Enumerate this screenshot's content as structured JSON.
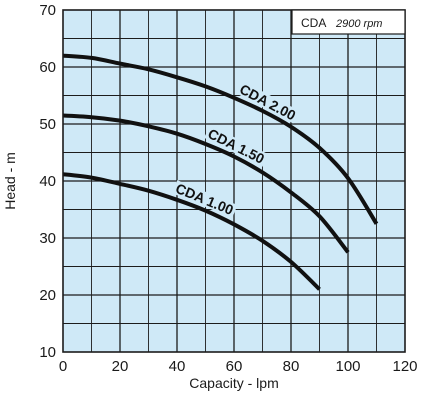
{
  "chart_data": {
    "type": "line",
    "title": "",
    "xlabel": "Capacity - lpm",
    "ylabel": "Head - m",
    "xlim": [
      0,
      120
    ],
    "ylim": [
      10,
      70
    ],
    "x_ticks": [
      "0",
      "20",
      "40",
      "60",
      "80",
      "100",
      "120"
    ],
    "y_ticks": [
      "10",
      "20",
      "30",
      "40",
      "50",
      "60",
      "70"
    ],
    "grid": true,
    "legend": "none",
    "badge": {
      "model": "CDA",
      "speed": "2900 rpm"
    },
    "series": [
      {
        "name": "CDA 2.00",
        "x": [
          0,
          10,
          20,
          30,
          40,
          50,
          60,
          70,
          80,
          90,
          100,
          110
        ],
        "y": [
          62.0,
          61.6,
          60.6,
          59.6,
          58.2,
          56.6,
          54.6,
          52.3,
          49.5,
          45.8,
          40.5,
          32.5
        ]
      },
      {
        "name": "CDA 1.50",
        "x": [
          0,
          10,
          20,
          30,
          40,
          50,
          60,
          70,
          80,
          90,
          100
        ],
        "y": [
          51.5,
          51.2,
          50.6,
          49.6,
          48.3,
          46.5,
          44.3,
          41.5,
          38.0,
          33.8,
          27.5
        ]
      },
      {
        "name": "CDA 1.00",
        "x": [
          0,
          10,
          20,
          30,
          40,
          50,
          60,
          70,
          80,
          90
        ],
        "y": [
          41.2,
          40.6,
          39.5,
          38.3,
          36.7,
          34.8,
          32.4,
          29.5,
          25.8,
          21.0
        ]
      }
    ]
  },
  "colors": {
    "plot_background": "#cfe9f7",
    "grid": "#1c1c1c",
    "curve": "#111111",
    "badge_background": "#ffffff"
  }
}
